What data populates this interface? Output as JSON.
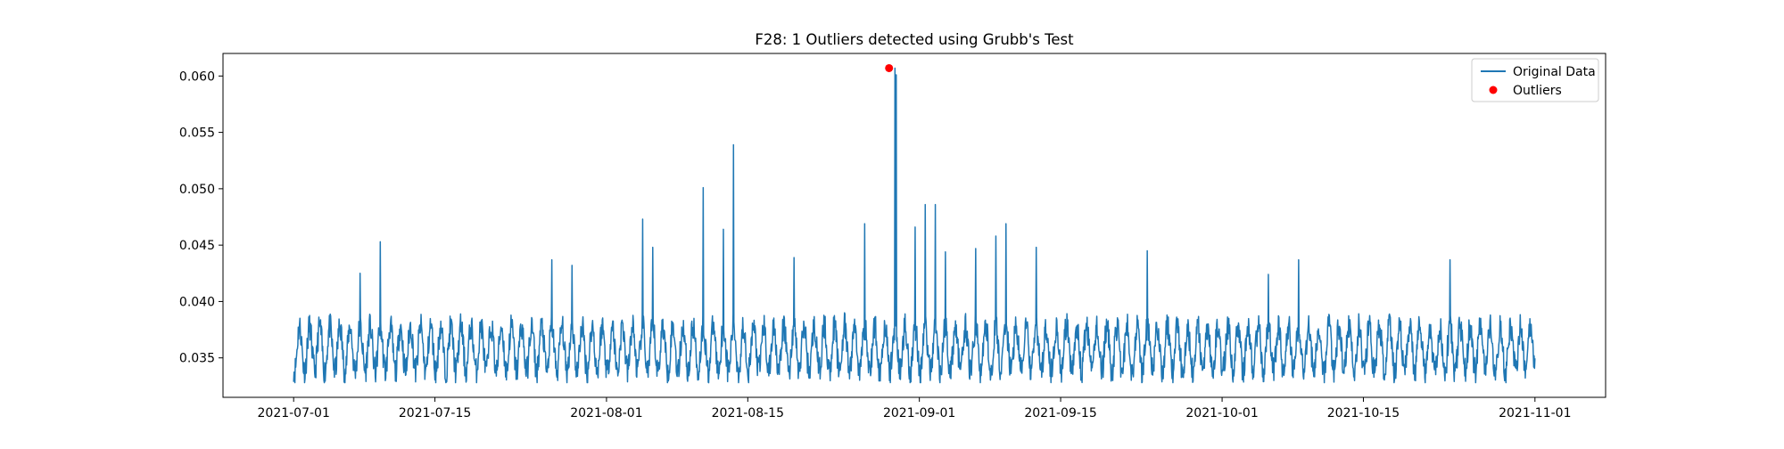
{
  "chart_data": {
    "type": "line",
    "title": "F28: 1 Outliers detected using Grubb's Test",
    "xlabel": "",
    "ylabel": "",
    "x_range": [
      "2021-06-24",
      "2021-11-08"
    ],
    "ylim": [
      0.0315,
      0.062
    ],
    "grid": false,
    "legend_position": "top-right",
    "x_ticks": [
      "2021-07-01",
      "2021-07-15",
      "2021-08-01",
      "2021-08-15",
      "2021-09-01",
      "2021-09-15",
      "2021-10-01",
      "2021-10-15",
      "2021-11-01"
    ],
    "y_ticks": [
      "0.035",
      "0.040",
      "0.045",
      "0.050",
      "0.055",
      "0.060"
    ],
    "series": [
      {
        "name": "Original Data",
        "kind": "line",
        "color": "#1f77b4",
        "sampling": "hourly, 2021-07-01 to 2021-11-01",
        "baseline_daily_range": [
          0.033,
          0.039
        ],
        "notable_peaks": [
          {
            "x": "2021-07-07",
            "y": 0.0425
          },
          {
            "x": "2021-07-09",
            "y": 0.0453
          },
          {
            "x": "2021-07-26",
            "y": 0.0437
          },
          {
            "x": "2021-07-28",
            "y": 0.0432
          },
          {
            "x": "2021-08-04",
            "y": 0.0473
          },
          {
            "x": "2021-08-05",
            "y": 0.0448
          },
          {
            "x": "2021-08-10",
            "y": 0.0501
          },
          {
            "x": "2021-08-12",
            "y": 0.0464
          },
          {
            "x": "2021-08-13",
            "y": 0.0539
          },
          {
            "x": "2021-08-19",
            "y": 0.0439
          },
          {
            "x": "2021-08-26",
            "y": 0.0469
          },
          {
            "x": "2021-08-29",
            "y": 0.0607
          },
          {
            "x": "2021-08-29",
            "y": 0.0601
          },
          {
            "x": "2021-08-31",
            "y": 0.0466
          },
          {
            "x": "2021-09-01",
            "y": 0.0486
          },
          {
            "x": "2021-09-02",
            "y": 0.0486
          },
          {
            "x": "2021-09-03",
            "y": 0.0444
          },
          {
            "x": "2021-09-06",
            "y": 0.0447
          },
          {
            "x": "2021-09-08",
            "y": 0.0458
          },
          {
            "x": "2021-09-09",
            "y": 0.0469
          },
          {
            "x": "2021-09-12",
            "y": 0.0448
          },
          {
            "x": "2021-09-23",
            "y": 0.0445
          },
          {
            "x": "2021-10-05",
            "y": 0.0424
          },
          {
            "x": "2021-10-08",
            "y": 0.0437
          },
          {
            "x": "2021-10-23",
            "y": 0.0437
          }
        ]
      },
      {
        "name": "Outliers",
        "kind": "scatter",
        "color": "#ff0000",
        "points": [
          {
            "x": "2021-08-29",
            "y": 0.0607
          }
        ]
      }
    ]
  }
}
